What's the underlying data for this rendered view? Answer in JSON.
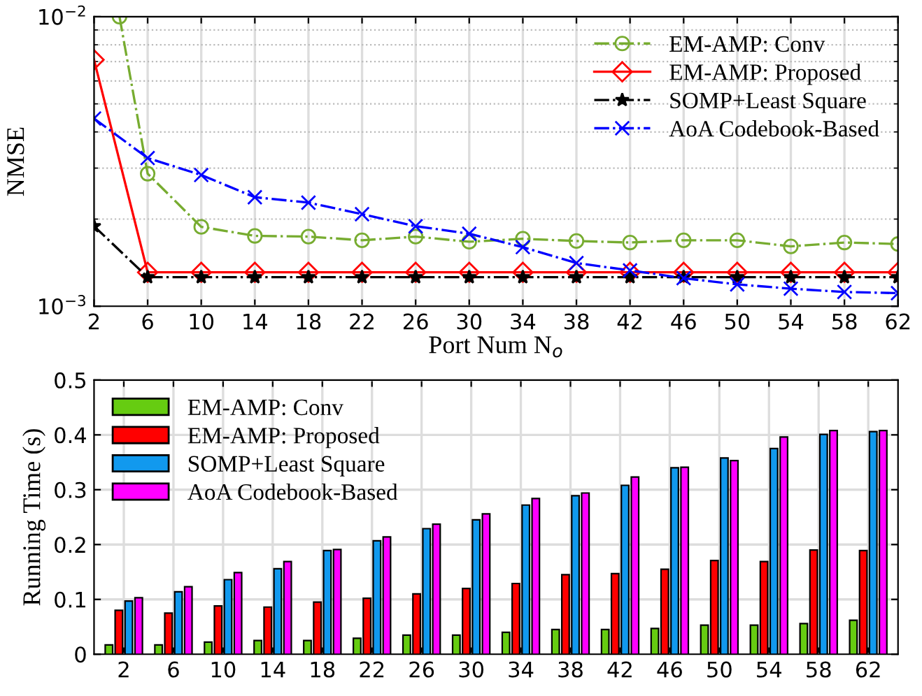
{
  "chart_data": [
    {
      "type": "line",
      "ylabel": "NMSE",
      "xlabel": "Port Num N$_{o}$",
      "log": "y",
      "grid": true,
      "legend": "top right",
      "x": [
        2,
        6,
        10,
        14,
        18,
        22,
        26,
        30,
        34,
        38,
        42,
        46,
        50,
        54,
        58,
        62
      ],
      "xlim": [
        2,
        62
      ],
      "xticks": [
        2,
        6,
        10,
        14,
        18,
        22,
        26,
        30,
        34,
        38,
        42,
        46,
        50,
        54,
        58,
        62
      ],
      "ylim": [
        0.001,
        0.01
      ],
      "yticks": [
        {
          "value": 0.001,
          "label": "10$^{−3}$"
        },
        {
          "value": 0.01,
          "label": "10$^{−2}$"
        }
      ],
      "series": [
        {
          "name": "EM-AMP: Conv",
          "color": "#77ac30",
          "marker": "circle",
          "line_style": "dashdot",
          "x": [
            3.9,
            6,
            10,
            14,
            18,
            22,
            26,
            30,
            34,
            38,
            42,
            46,
            50,
            54,
            58,
            62
          ],
          "values": [
            0.01,
            0.00287,
            0.00188,
            0.00175,
            0.00174,
            0.00169,
            0.00174,
            0.00167,
            0.00171,
            0.00168,
            0.00166,
            0.00169,
            0.00169,
            0.00161,
            0.00166,
            0.00164
          ]
        },
        {
          "name": "EM-AMP: Proposed",
          "color": "#ff0000",
          "marker": "diamond",
          "line_style": "solid",
          "values": [
            0.0071,
            0.00131,
            0.00131,
            0.00131,
            0.00131,
            0.00131,
            0.00131,
            0.00131,
            0.00131,
            0.00131,
            0.00131,
            0.00131,
            0.00131,
            0.00131,
            0.00131,
            0.00131
          ]
        },
        {
          "name": "SOMP+Least Square",
          "color": "#000000",
          "marker": "star",
          "line_style": "dashdot",
          "values": [
            0.00189,
            0.00126,
            0.00126,
            0.00126,
            0.00126,
            0.00126,
            0.00126,
            0.00126,
            0.00126,
            0.00126,
            0.00126,
            0.00126,
            0.00126,
            0.00126,
            0.00126,
            0.00126
          ]
        },
        {
          "name": "AoA Codebook-Based",
          "color": "#0000ff",
          "marker": "cross",
          "line_style": "dashdot",
          "values": [
            0.00445,
            0.00325,
            0.00284,
            0.00238,
            0.00228,
            0.00208,
            0.00189,
            0.00178,
            0.0016,
            0.00141,
            0.00133,
            0.00125,
            0.00119,
            0.00115,
            0.00112,
            0.00111
          ]
        }
      ]
    },
    {
      "type": "bar",
      "ylabel": "Running Time (s)",
      "grid": true,
      "legend": "top left",
      "categories": [
        "2",
        "6",
        "10",
        "14",
        "18",
        "22",
        "26",
        "30",
        "34",
        "38",
        "42",
        "46",
        "50",
        "54",
        "58",
        "62"
      ],
      "ylim": [
        0,
        0.5
      ],
      "yticks": [
        0,
        0.1,
        0.2,
        0.3,
        0.4,
        0.5
      ],
      "series": [
        {
          "name": "EM-AMP: Conv",
          "color": "#66cc11",
          "values": [
            0.017,
            0.017,
            0.022,
            0.025,
            0.025,
            0.029,
            0.035,
            0.035,
            0.04,
            0.045,
            0.045,
            0.047,
            0.053,
            0.053,
            0.056,
            0.062
          ]
        },
        {
          "name": "EM-AMP: Proposed",
          "color": "#ff0000",
          "values": [
            0.08,
            0.075,
            0.088,
            0.086,
            0.095,
            0.102,
            0.11,
            0.12,
            0.129,
            0.145,
            0.147,
            0.155,
            0.171,
            0.169,
            0.19,
            0.189
          ]
        },
        {
          "name": "SOMP+Least Square",
          "color": "#1199ee",
          "values": [
            0.097,
            0.114,
            0.136,
            0.156,
            0.189,
            0.207,
            0.229,
            0.245,
            0.272,
            0.289,
            0.308,
            0.34,
            0.358,
            0.375,
            0.401,
            0.406
          ]
        },
        {
          "name": "AoA Codebook-Based",
          "color": "#ff00ff",
          "values": [
            0.103,
            0.123,
            0.149,
            0.169,
            0.191,
            0.214,
            0.237,
            0.256,
            0.284,
            0.294,
            0.323,
            0.341,
            0.353,
            0.396,
            0.408,
            0.408
          ]
        }
      ]
    }
  ]
}
